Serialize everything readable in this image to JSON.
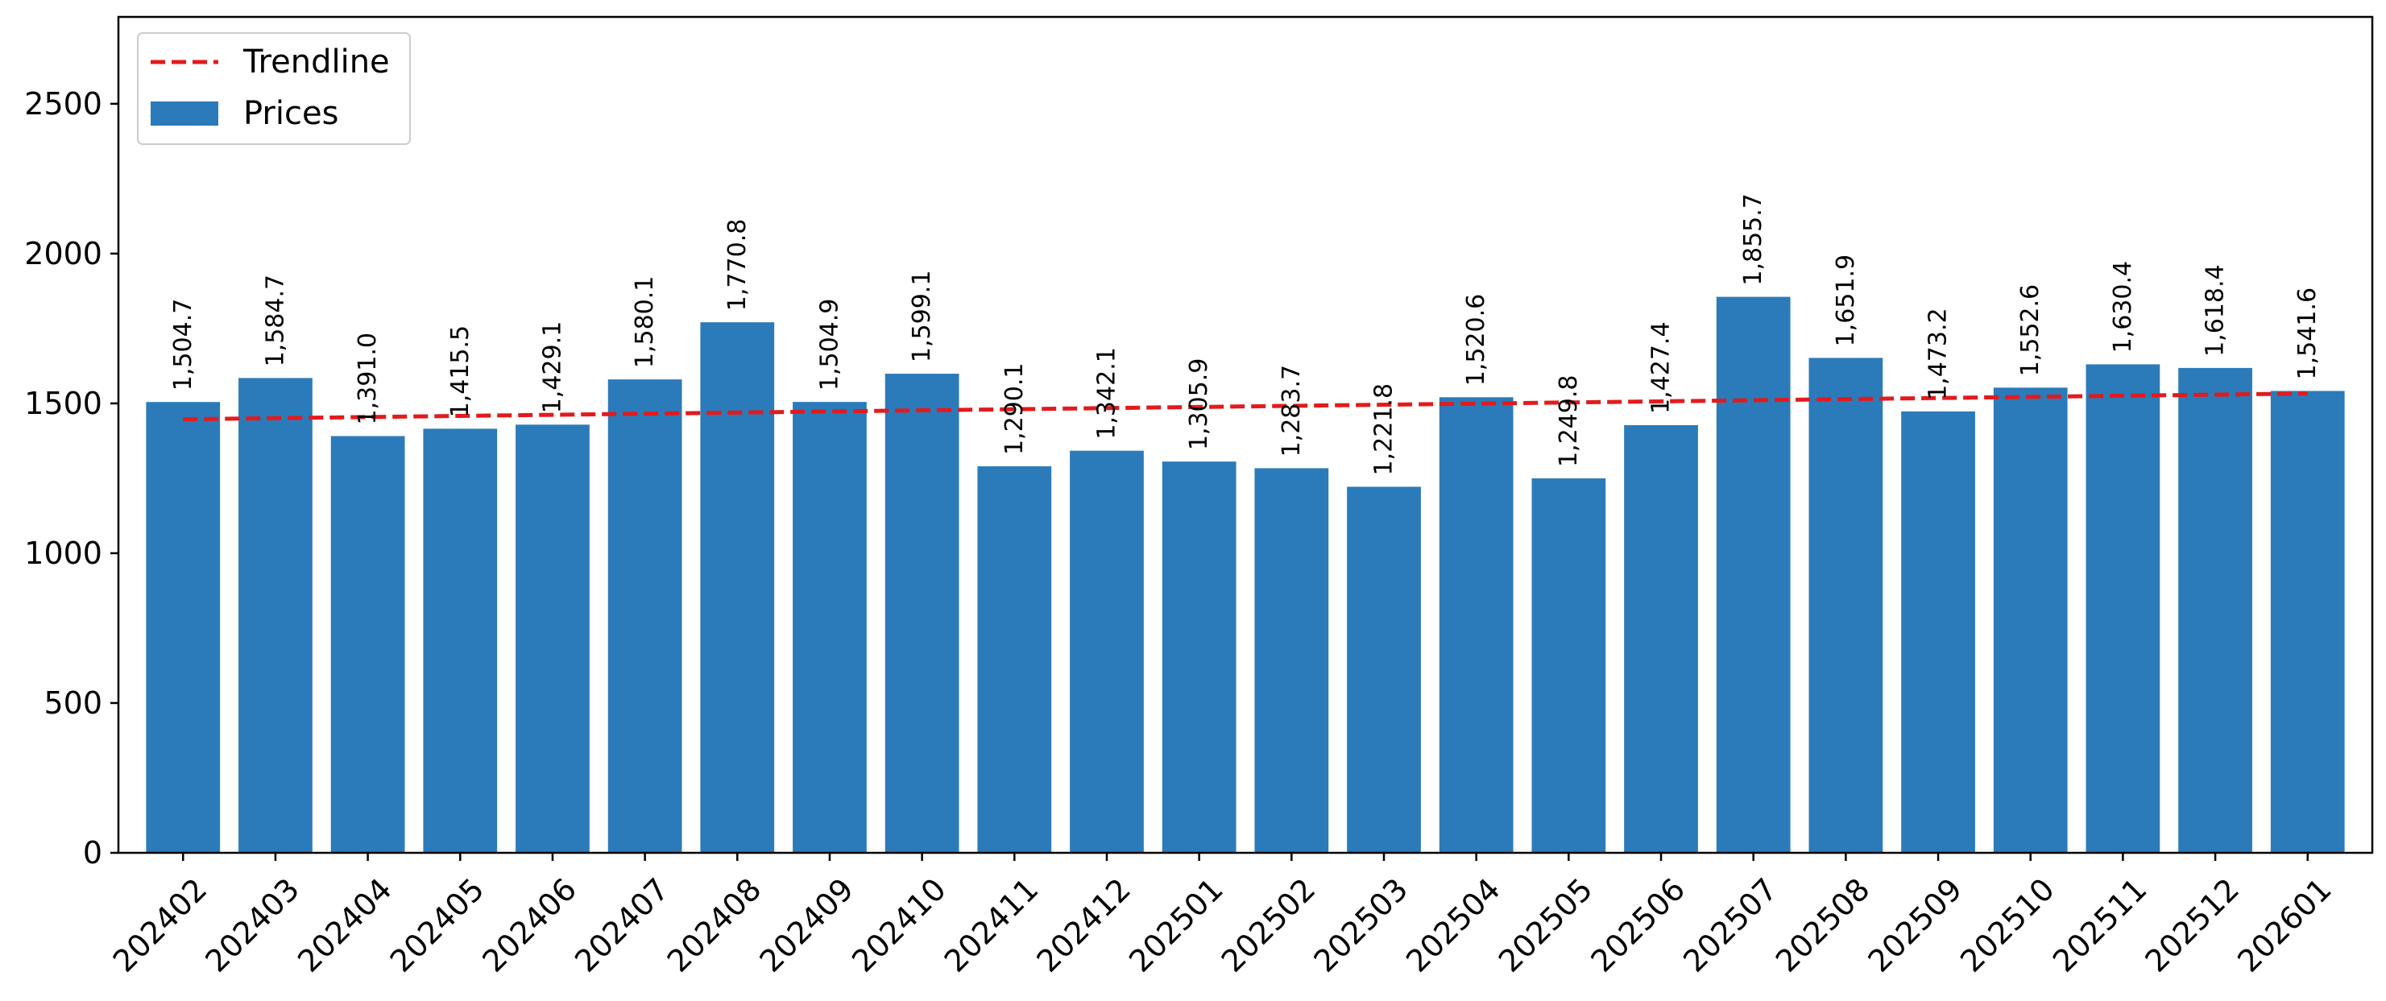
{
  "chart_data": {
    "type": "bar",
    "title": "",
    "xlabel": "",
    "ylabel": "",
    "categories": [
      "202402",
      "202403",
      "202404",
      "202405",
      "202406",
      "202407",
      "202408",
      "202409",
      "202410",
      "202411",
      "202412",
      "202501",
      "202502",
      "202503",
      "202504",
      "202505",
      "202506",
      "202507",
      "202508",
      "202509",
      "202510",
      "202511",
      "202512",
      "202601"
    ],
    "series": [
      {
        "name": "Prices",
        "type": "bar",
        "color": "#2b7bba",
        "values": [
          1504.7,
          1584.7,
          1391.0,
          1415.5,
          1429.1,
          1580.1,
          1770.8,
          1504.9,
          1599.1,
          1290.1,
          1342.1,
          1305.9,
          1283.7,
          1221.8,
          1520.6,
          1249.8,
          1427.4,
          1855.7,
          1651.9,
          1473.2,
          1552.6,
          1630.4,
          1618.4,
          1541.6
        ],
        "value_labels": [
          "1,504.7",
          "1,584.7",
          "1,391.0",
          "1,415.5",
          "1,429.1",
          "1,580.1",
          "1,770.8",
          "1,504.9",
          "1,599.1",
          "1,290.1",
          "1,342.1",
          "1,305.9",
          "1,283.7",
          "1,221.8",
          "1,520.6",
          "1,249.8",
          "1,427.4",
          "1,855.7",
          "1,651.9",
          "1,473.2",
          "1,552.6",
          "1,630.4",
          "1,618.4",
          "1,541.6"
        ]
      },
      {
        "name": "Trendline",
        "type": "line",
        "style": "dashed",
        "color": "#e31a1c",
        "start_value": 1447,
        "end_value": 1533
      }
    ],
    "ylim": [
      0,
      2790
    ],
    "yticks": [
      0,
      500,
      1000,
      1500,
      2000,
      2500
    ],
    "ytick_labels": [
      "0",
      "500",
      "1000",
      "1500",
      "2000",
      "2500"
    ],
    "grid": false,
    "legend": {
      "position": "top-left",
      "entries": [
        {
          "label": "Trendline",
          "marker": "dashed-line",
          "color": "#e31a1c"
        },
        {
          "label": "Prices",
          "marker": "patch",
          "color": "#2b7bba"
        }
      ]
    }
  }
}
